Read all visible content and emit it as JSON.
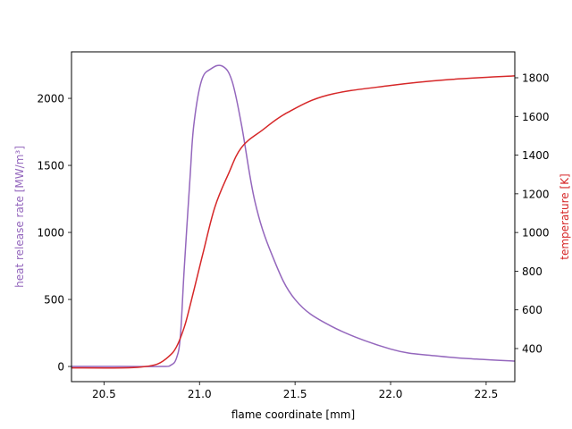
{
  "chart_data": {
    "type": "line",
    "title": "",
    "xlabel": "flame coordinate [mm]",
    "ylabel": "heat release rate [MW/m³]",
    "ylabel_right": "temperature [K]",
    "xlim": [
      20.33,
      22.65
    ],
    "ylim": [
      -113,
      2347
    ],
    "ylim_right": [
      229,
      1934
    ],
    "grid": false,
    "legend": null,
    "x_ticks": [
      20.5,
      21.0,
      21.5,
      22.0,
      22.5
    ],
    "x_tick_labels": [
      "20.5",
      "21.0",
      "21.5",
      "22.0",
      "22.5"
    ],
    "y_ticks": [
      0,
      500,
      1000,
      1500,
      2000
    ],
    "y_tick_labels": [
      "0",
      "500",
      "1000",
      "1500",
      "2000"
    ],
    "y_ticks_right": [
      400,
      600,
      800,
      1000,
      1200,
      1400,
      1600,
      1800
    ],
    "y_tick_labels_right": [
      "400",
      "600",
      "800",
      "1000",
      "1200",
      "1400",
      "1600",
      "1800"
    ],
    "series": [
      {
        "name": "heat release rate",
        "axis": "left",
        "color": "#9467bd",
        "x": [
          20.33,
          20.6,
          20.8,
          20.85,
          20.88,
          20.9,
          20.92,
          20.95,
          20.97,
          21.01,
          21.06,
          21.12,
          21.17,
          21.22,
          21.29,
          21.38,
          21.5,
          21.69,
          22.0,
          22.23,
          22.45,
          22.65
        ],
        "values": [
          0,
          0,
          0,
          10,
          65,
          230,
          730,
          1400,
          1800,
          2130,
          2220,
          2240,
          2130,
          1800,
          1230,
          830,
          500,
          300,
          130,
          80,
          55,
          40
        ]
      },
      {
        "name": "temperature",
        "axis": "right",
        "color": "#d62728",
        "x": [
          20.33,
          20.6,
          20.7,
          20.78,
          20.84,
          20.88,
          20.92,
          20.95,
          21.0,
          21.02,
          21.08,
          21.15,
          21.22,
          21.33,
          21.46,
          21.67,
          22.0,
          22.3,
          22.65
        ],
        "values": [
          300,
          300,
          305,
          320,
          360,
          410,
          510,
          620,
          820,
          900,
          1130,
          1300,
          1440,
          1530,
          1620,
          1710,
          1760,
          1790,
          1810
        ]
      }
    ]
  }
}
